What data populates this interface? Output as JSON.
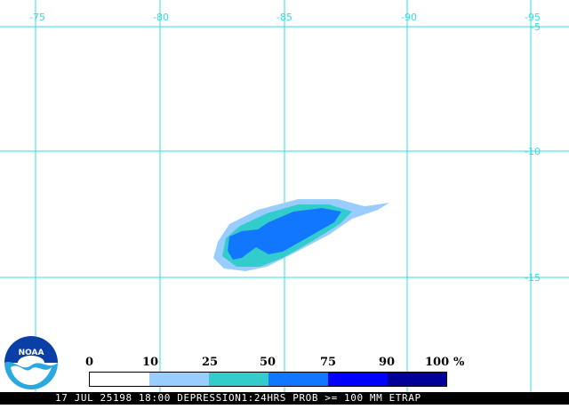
{
  "map": {
    "longitude_labels": [
      "-75",
      "-80",
      "-85",
      "-90",
      "-95"
    ],
    "latitude_labels": [
      "-5",
      "-10",
      "-15"
    ],
    "colors": {
      "grid": "#33dddd",
      "c10": "#99ccff",
      "c25": "#33cccc",
      "c50": "#1177ff",
      "c75": "#0000ff",
      "c90": "#000099"
    }
  },
  "legend": {
    "labels": [
      "0",
      "10",
      "25",
      "50",
      "75",
      "90",
      "100"
    ],
    "unit": "%",
    "colors": [
      "#ffffff",
      "#99ccff",
      "#33cccc",
      "#1177ff",
      "#0000ff",
      "#000099"
    ]
  },
  "logo": {
    "text": "NOAA"
  },
  "footer": {
    "text": "17 JUL 25198 18:00 DEPRESSION1:24HRS PROB >= 100 MM ETRAP"
  }
}
